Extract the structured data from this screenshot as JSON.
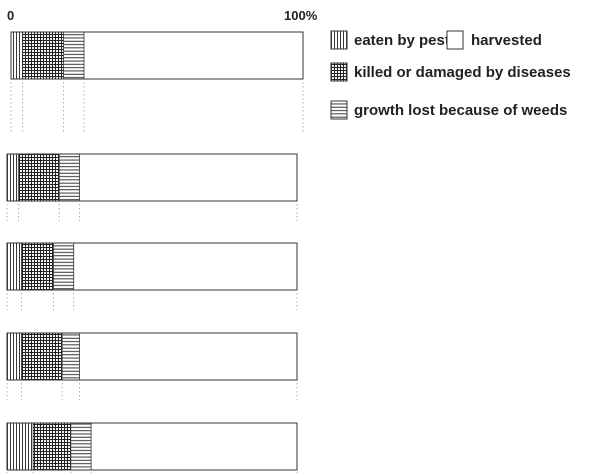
{
  "chart_data": {
    "type": "bar",
    "orientation": "horizontal",
    "stacked": true,
    "axis": {
      "start_label": "0",
      "end_label": "100%",
      "range": [
        0,
        100
      ]
    },
    "grid": true,
    "legend_position": "top-right",
    "series": [
      {
        "key": "pests",
        "name": "eaten by pests",
        "pattern": "vertical-lines",
        "values": [
          4,
          4,
          5,
          5,
          9
        ]
      },
      {
        "key": "diseases",
        "name": "killed or damaged by diseases",
        "pattern": "grid",
        "values": [
          14,
          14,
          11,
          14,
          13
        ]
      },
      {
        "key": "weeds",
        "name": "growth lost because of weeds",
        "pattern": "horizontal-lines",
        "values": [
          7,
          7,
          7,
          6,
          7
        ]
      },
      {
        "key": "harvested",
        "name": "harvested",
        "pattern": "blank",
        "values": [
          75,
          75,
          77,
          75,
          71
        ]
      }
    ],
    "legend": [
      {
        "series": "pests",
        "label": "eaten by pests"
      },
      {
        "series": "harvested",
        "label": "harvested"
      },
      {
        "series": "diseases",
        "label": "killed or damaged by diseases"
      },
      {
        "series": "weeds",
        "label": "growth lost because of weeds"
      }
    ]
  }
}
